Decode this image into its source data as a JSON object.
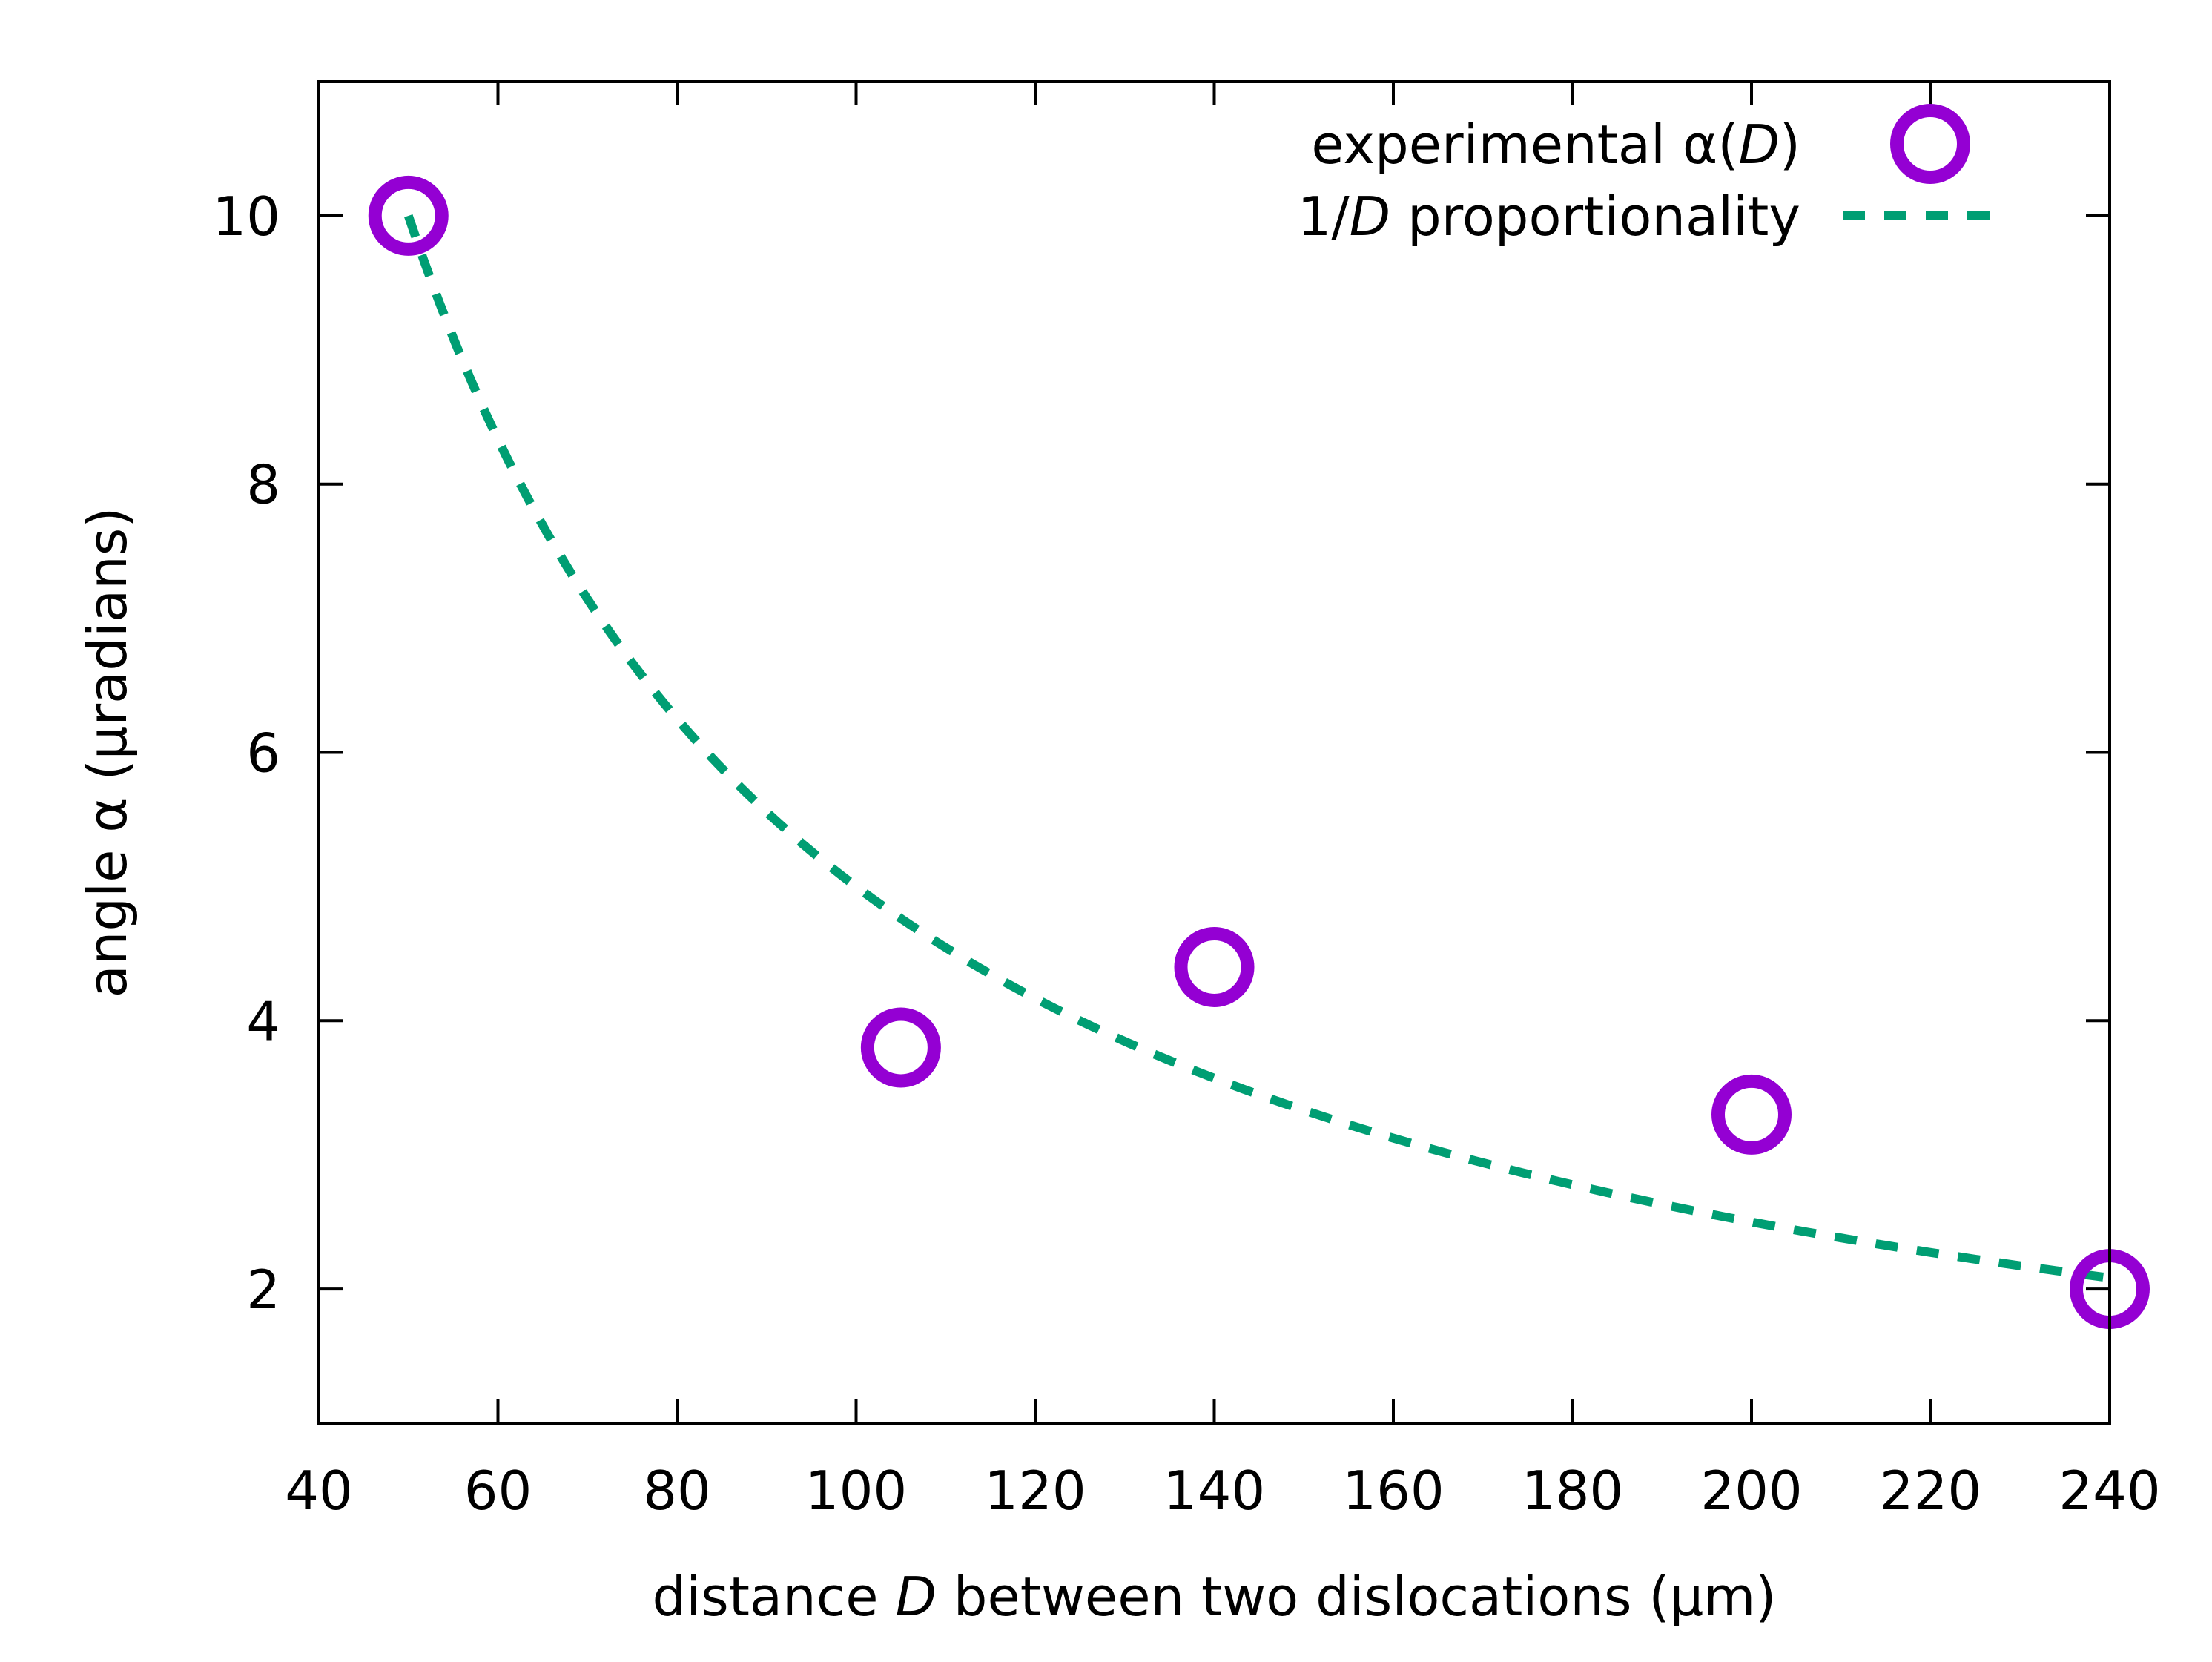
{
  "chart_data": {
    "type": "scatter",
    "title": "",
    "xlabel": {
      "prefix": "distance ",
      "italic": "D",
      "suffix": " between two dislocations (µm)"
    },
    "ylabel": "angle α (µradians)",
    "xlim": [
      40,
      240
    ],
    "ylim": [
      1,
      11
    ],
    "xticks": [
      40,
      60,
      80,
      100,
      120,
      140,
      160,
      180,
      200,
      220,
      240
    ],
    "yticks": [
      2,
      4,
      6,
      8,
      10
    ],
    "grid": false,
    "legend_position": "top-right",
    "series": [
      {
        "name": "experimental α(D)",
        "legend": {
          "prefix": "experimental α(",
          "italic": "D",
          "suffix": ")"
        },
        "kind": "points",
        "marker": "open-circle",
        "color": "#9400d3",
        "points": [
          {
            "x": 50,
            "y": 10.0
          },
          {
            "x": 105,
            "y": 3.8
          },
          {
            "x": 140,
            "y": 4.4
          },
          {
            "x": 200,
            "y": 3.3
          },
          {
            "x": 240,
            "y": 2.0
          }
        ]
      },
      {
        "name": "1/D proportionality",
        "legend": {
          "prefix": "1/",
          "italic": "D",
          "suffix": " proportionality"
        },
        "kind": "curve",
        "style": "dashed",
        "color": "#009e73",
        "function": "500 / x",
        "coefficient": 500,
        "domain": [
          50,
          240
        ]
      }
    ]
  }
}
